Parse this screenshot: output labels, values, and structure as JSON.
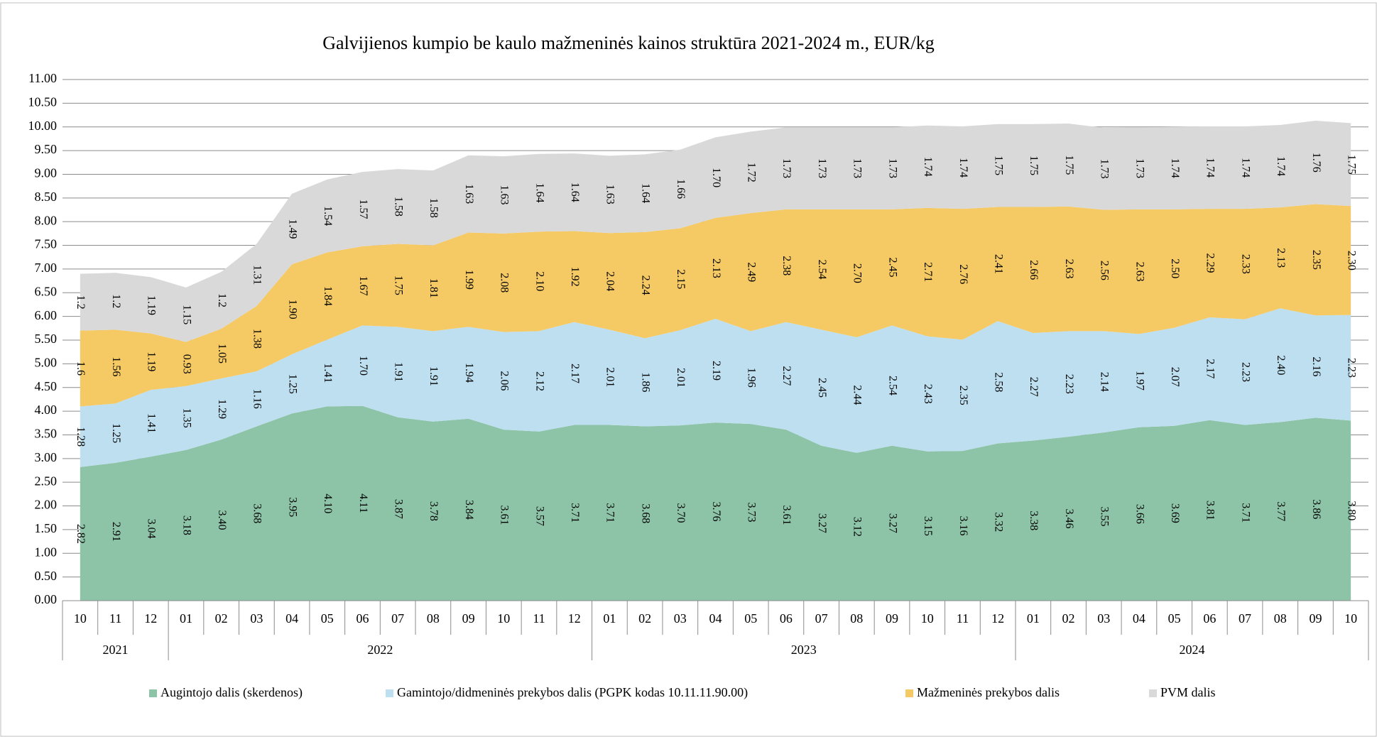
{
  "chart_data": {
    "type": "stacked_area",
    "title": "Galvijienos kumpio be kaulo mažmeninės kainos struktūra 2021-2024 m., EUR/kg",
    "groups": [
      {
        "label": "2021",
        "months": [
          "10",
          "11",
          "12"
        ]
      },
      {
        "label": "2022",
        "months": [
          "01",
          "02",
          "03",
          "04",
          "05",
          "06",
          "07",
          "08",
          "09",
          "10",
          "11",
          "12"
        ]
      },
      {
        "label": "2023",
        "months": [
          "01",
          "02",
          "03",
          "04",
          "05",
          "06",
          "07",
          "08",
          "09",
          "10",
          "11",
          "12"
        ]
      },
      {
        "label": "2024",
        "months": [
          "01",
          "02",
          "03",
          "04",
          "05",
          "06",
          "07",
          "08",
          "09",
          "10"
        ]
      }
    ],
    "ylim": [
      0,
      11
    ],
    "yticks": [
      {
        "value": 0,
        "label": "0.00"
      },
      {
        "value": 0.5,
        "label": "0.50"
      },
      {
        "value": 1,
        "label": "1.00"
      },
      {
        "value": 1.5,
        "label": "1.50"
      },
      {
        "value": 2,
        "label": "2.00"
      },
      {
        "value": 2.5,
        "label": "2.50"
      },
      {
        "value": 3,
        "label": "3.00"
      },
      {
        "value": 3.5,
        "label": "3.50"
      },
      {
        "value": 4,
        "label": "4.00"
      },
      {
        "value": 4.5,
        "label": "4.50"
      },
      {
        "value": 5,
        "label": "5.00"
      },
      {
        "value": 5.5,
        "label": "5.50"
      },
      {
        "value": 6,
        "label": "6.00"
      },
      {
        "value": 6.5,
        "label": "6.50"
      },
      {
        "value": 7,
        "label": "7.00"
      },
      {
        "value": 7.5,
        "label": "7.50"
      },
      {
        "value": 8,
        "label": "8.00"
      },
      {
        "value": 8.5,
        "label": "8.50"
      },
      {
        "value": 9,
        "label": "9.00"
      },
      {
        "value": 9.5,
        "label": "9.50"
      },
      {
        "value": 10,
        "label": "10.00"
      },
      {
        "value": 10.5,
        "label": "10.50"
      },
      {
        "value": 11,
        "label": "11.00"
      }
    ],
    "grid": true,
    "legend": "bottom",
    "series": [
      {
        "name": "Augintojo dalis (skerdenos)",
        "color": "#8dc3a7",
        "values": [
          2.82,
          2.91,
          3.04,
          3.18,
          3.4,
          3.68,
          3.95,
          4.1,
          4.11,
          3.87,
          3.78,
          3.84,
          3.61,
          3.57,
          3.71,
          3.71,
          3.68,
          3.7,
          3.76,
          3.73,
          3.61,
          3.27,
          3.12,
          3.27,
          3.15,
          3.16,
          3.32,
          3.38,
          3.46,
          3.55,
          3.66,
          3.69,
          3.81,
          3.71,
          3.77,
          3.86,
          3.8
        ],
        "value_labels": [
          "2.82",
          "2.91",
          "3.04",
          "3.18",
          "3.40",
          "3.68",
          "3.95",
          "4.10",
          "4.11",
          "3.87",
          "3.78",
          "3.84",
          "3.61",
          "3.57",
          "3.71",
          "3.71",
          "3.68",
          "3.70",
          "3.76",
          "3.73",
          "3.61",
          "3.27",
          "3.12",
          "3.27",
          "3.15",
          "3.16",
          "3.32",
          "3.38",
          "3.46",
          "3.55",
          "3.66",
          "3.69",
          "3.81",
          "3.71",
          "3.77",
          "3.86",
          "3.80"
        ]
      },
      {
        "name": "Gamintojo/didmeninės prekybos dalis (PGPK kodas 10.11.11.90.00)",
        "color": "#bddff0",
        "values": [
          1.28,
          1.25,
          1.41,
          1.35,
          1.29,
          1.16,
          1.25,
          1.41,
          1.7,
          1.91,
          1.91,
          1.94,
          2.06,
          2.12,
          2.17,
          2.01,
          1.86,
          2.01,
          2.19,
          1.96,
          2.27,
          2.45,
          2.44,
          2.54,
          2.43,
          2.35,
          2.58,
          2.27,
          2.23,
          2.14,
          1.97,
          2.07,
          2.17,
          2.23,
          2.4,
          2.16,
          2.23
        ],
        "value_labels": [
          "1.28",
          "1.25",
          "1.41",
          "1.35",
          "1.29",
          "1.16",
          "1.25",
          "1.41",
          "1.70",
          "1.91",
          "1.91",
          "1.94",
          "2.06",
          "2.12",
          "2.17",
          "2.01",
          "1.86",
          "2.01",
          "2.19",
          "1.96",
          "2.27",
          "2.45",
          "2.44",
          "2.54",
          "2.43",
          "2.35",
          "2.58",
          "2.27",
          "2.23",
          "2.14",
          "1.97",
          "2.07",
          "2.17",
          "2.23",
          "2.40",
          "2.16",
          "2.23"
        ]
      },
      {
        "name": "Mažmeninės prekybos dalis",
        "color": "#f5c964",
        "values": [
          1.6,
          1.56,
          1.19,
          0.93,
          1.05,
          1.38,
          1.9,
          1.84,
          1.67,
          1.75,
          1.81,
          1.99,
          2.08,
          2.1,
          1.92,
          2.04,
          2.24,
          2.15,
          2.13,
          2.49,
          2.38,
          2.54,
          2.7,
          2.45,
          2.71,
          2.76,
          2.41,
          2.66,
          2.63,
          2.56,
          2.63,
          2.5,
          2.29,
          2.33,
          2.13,
          2.35,
          2.3
        ],
        "value_labels": [
          "1.6",
          "1.56",
          "1.19",
          "0.93",
          "1.05",
          "1.38",
          "1.90",
          "1.84",
          "1.67",
          "1.75",
          "1.81",
          "1.99",
          "2.08",
          "2.10",
          "1.92",
          "2.04",
          "2.24",
          "2.15",
          "2.13",
          "2.49",
          "2.38",
          "2.54",
          "2.70",
          "2.45",
          "2.71",
          "2.76",
          "2.41",
          "2.66",
          "2.63",
          "2.56",
          "2.63",
          "2.50",
          "2.29",
          "2.33",
          "2.13",
          "2.35",
          "2.30"
        ]
      },
      {
        "name": "PVM dalis",
        "color": "#d9d9d9",
        "values": [
          1.2,
          1.2,
          1.19,
          1.15,
          1.2,
          1.31,
          1.49,
          1.54,
          1.57,
          1.58,
          1.58,
          1.63,
          1.63,
          1.64,
          1.64,
          1.63,
          1.64,
          1.66,
          1.7,
          1.72,
          1.73,
          1.73,
          1.73,
          1.73,
          1.74,
          1.74,
          1.75,
          1.75,
          1.75,
          1.73,
          1.73,
          1.74,
          1.74,
          1.74,
          1.74,
          1.76,
          1.75
        ],
        "value_labels": [
          "1.2",
          "1.2",
          "1.19",
          "1.15",
          "1.2",
          "1.31",
          "1.49",
          "1.54",
          "1.57",
          "1.58",
          "1.58",
          "1.63",
          "1.63",
          "1.64",
          "1.64",
          "1.63",
          "1.64",
          "1.66",
          "1.70",
          "1.72",
          "1.73",
          "1.73",
          "1.73",
          "1.73",
          "1.74",
          "1.74",
          "1.75",
          "1.75",
          "1.75",
          "1.73",
          "1.73",
          "1.74",
          "1.74",
          "1.74",
          "1.74",
          "1.76",
          "1.75"
        ]
      }
    ]
  }
}
